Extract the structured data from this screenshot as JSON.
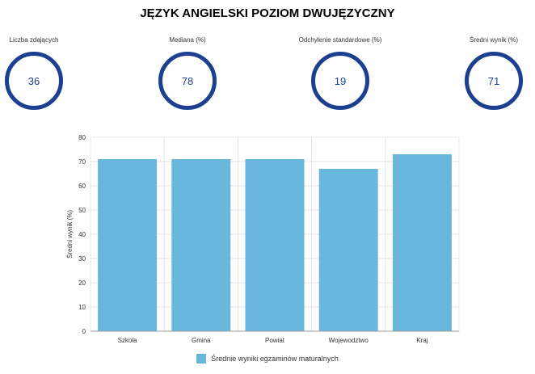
{
  "title": "JĘZYK ANGIELSKI POZIOM DWUJĘZYCZNY",
  "stats": [
    {
      "label": "Liczba zdających",
      "value": "36"
    },
    {
      "label": "Mediana (%)",
      "value": "78"
    },
    {
      "label": "Odchylenie standardowe (%)",
      "value": "19"
    },
    {
      "label": "Średni wynik (%)",
      "value": "71"
    }
  ],
  "colors": {
    "bar": "#6ab7dd",
    "circle": "#1c3f8f",
    "grid": "#e4e4e4"
  },
  "chart_data": {
    "type": "bar",
    "categories": [
      "Szkoła",
      "Gmina",
      "Powiat",
      "Wojewodztwo",
      "Kraj"
    ],
    "series": [
      {
        "name": "Średnie wyniki egzaminów maturalnych",
        "values": [
          71,
          71,
          71,
          67,
          73
        ]
      }
    ],
    "ylabel": "Średni wynik (%)",
    "ylim": [
      0,
      80
    ],
    "yticks": [
      0,
      10,
      20,
      30,
      40,
      50,
      60,
      70,
      80
    ],
    "grid": true,
    "legend": "bottom"
  }
}
